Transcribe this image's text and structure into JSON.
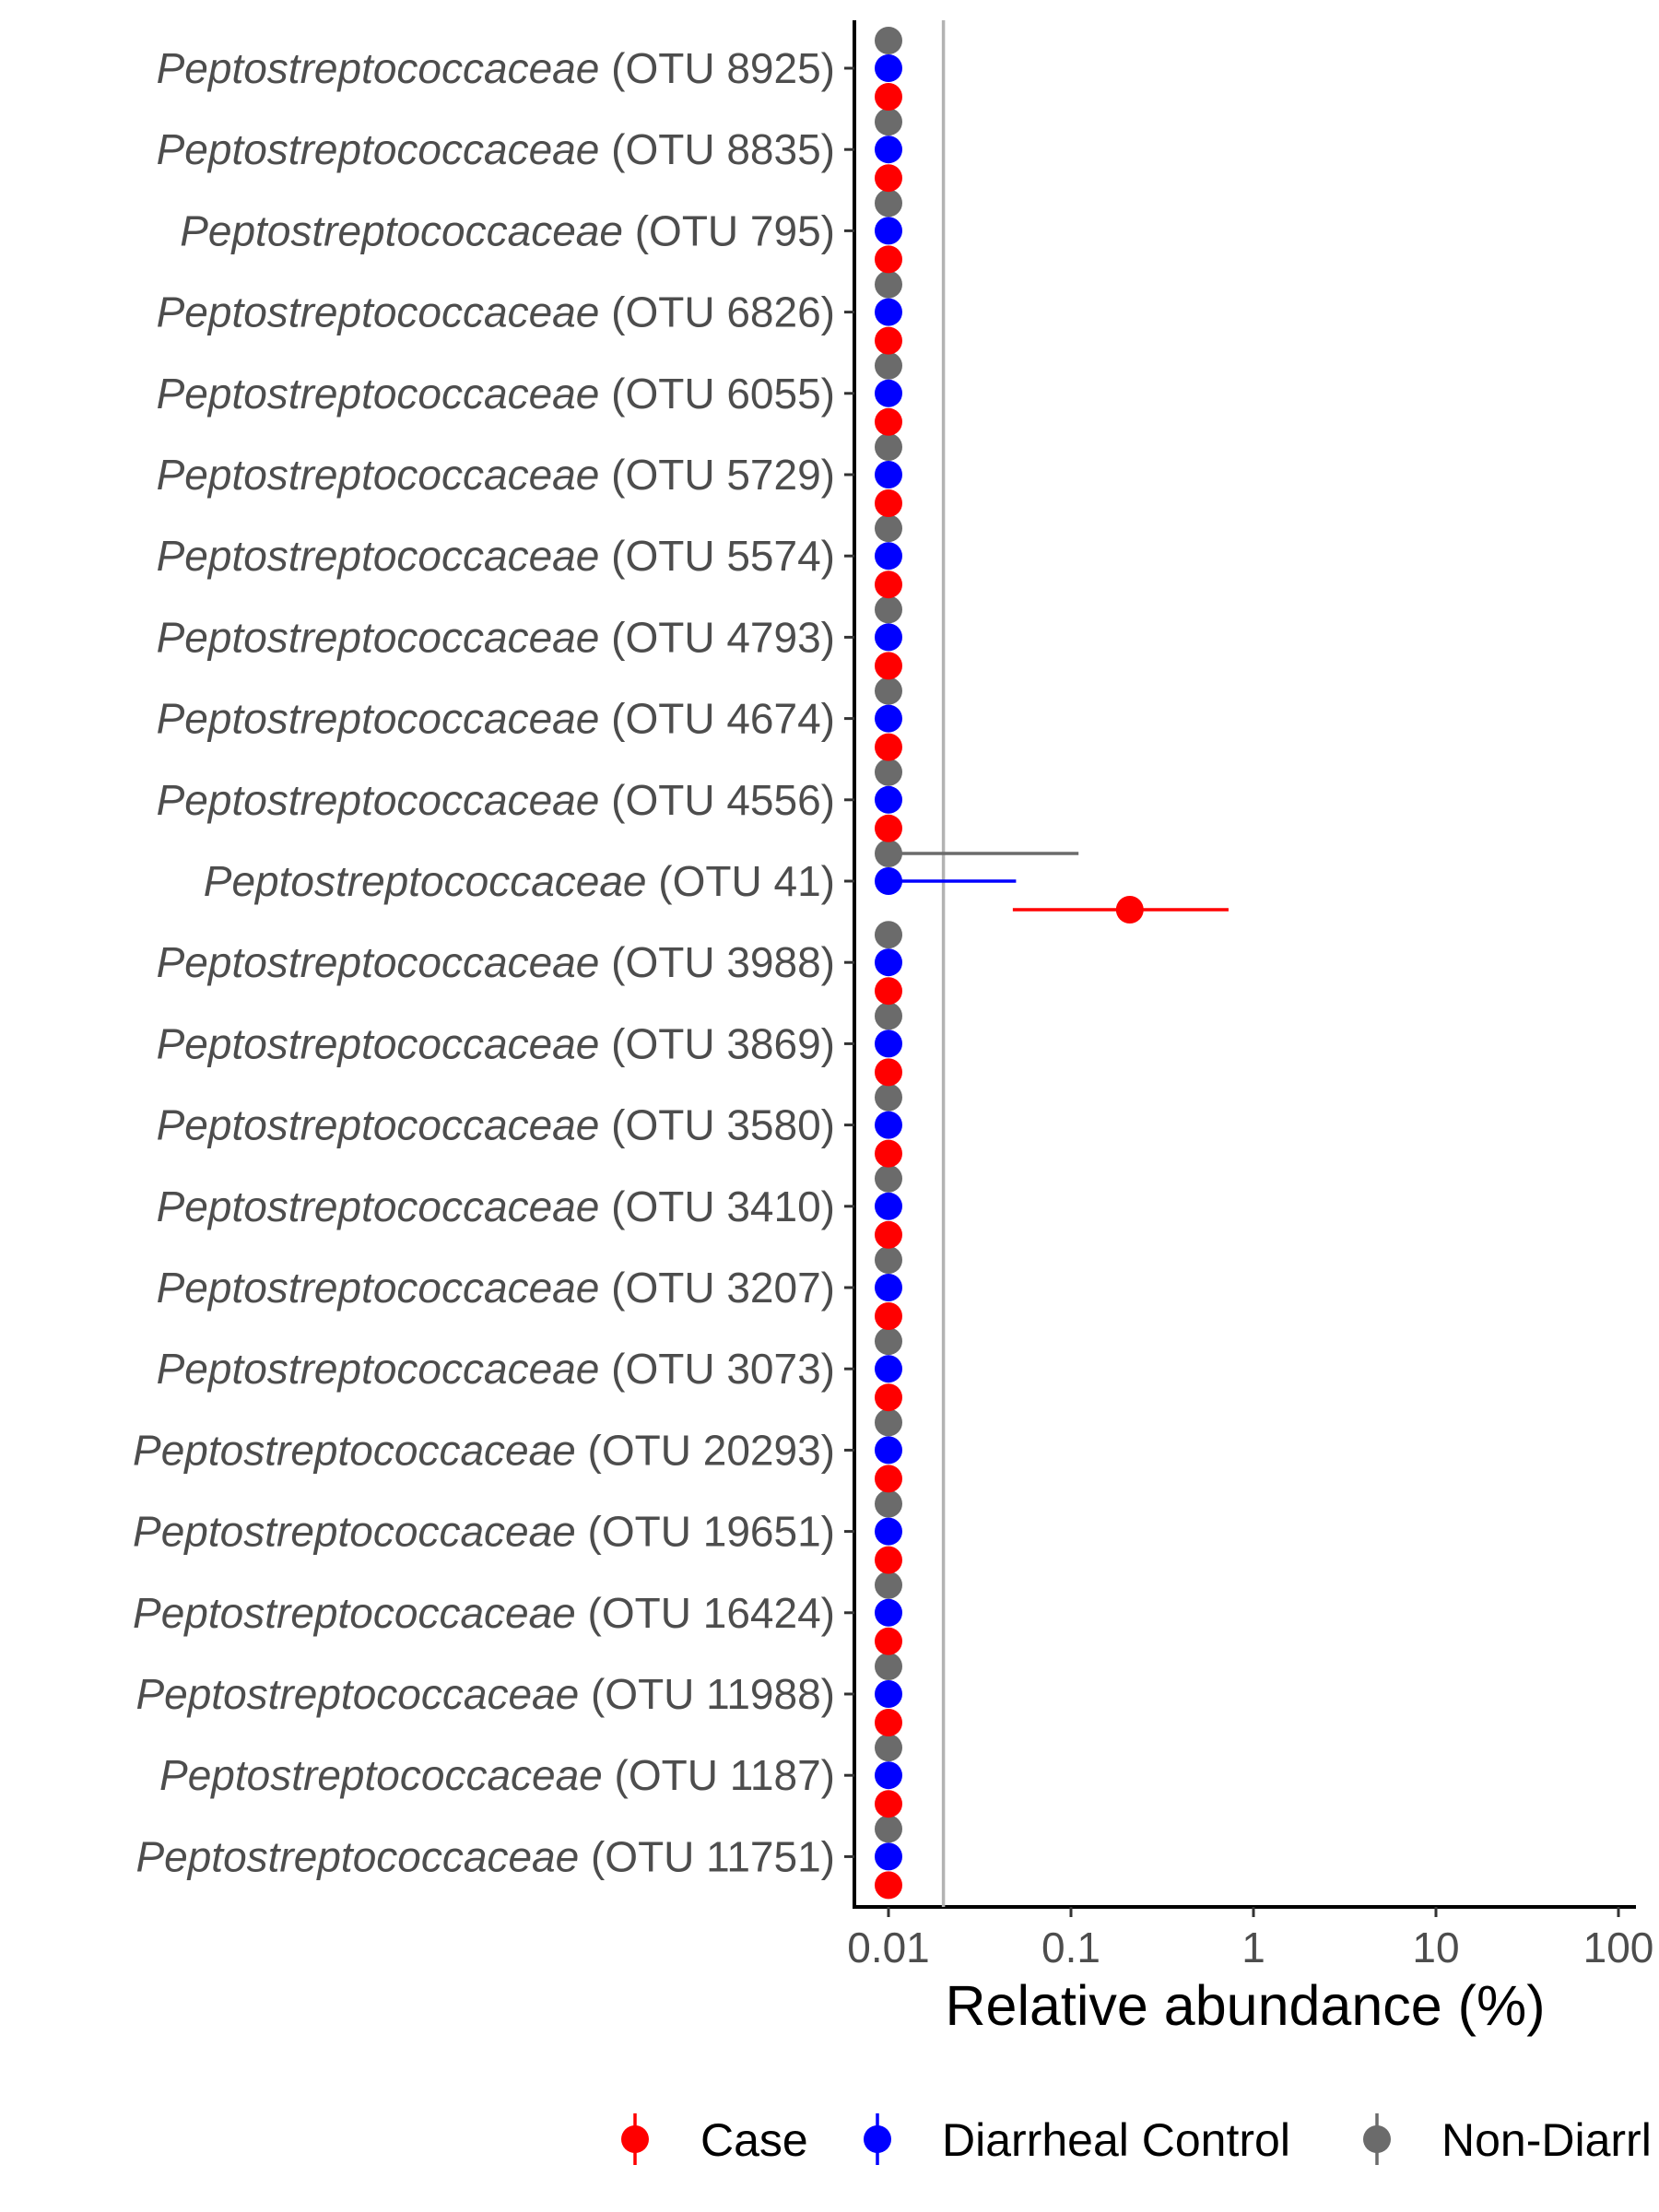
{
  "chart_data": {
    "type": "scatter",
    "subtype": "dot-and-whisker",
    "xlabel": "Relative abundance (%)",
    "x_scale": "log10",
    "xlim": [
      0.0075,
      150
    ],
    "x_ticks": [
      0.01,
      0.1,
      1,
      10,
      100
    ],
    "x_tick_labels": [
      "0.01",
      "0.1",
      "1",
      "10",
      "100"
    ],
    "reference_line_x": 0.02,
    "grid": false,
    "legend_position": "bottom",
    "categories": [
      {
        "family": "Peptostreptococcaceae",
        "otu": "(OTU 8925)"
      },
      {
        "family": "Peptostreptococcaceae",
        "otu": "(OTU 8835)"
      },
      {
        "family": "Peptostreptococcaceae",
        "otu": "(OTU 795)"
      },
      {
        "family": "Peptostreptococcaceae",
        "otu": "(OTU 6826)"
      },
      {
        "family": "Peptostreptococcaceae",
        "otu": "(OTU 6055)"
      },
      {
        "family": "Peptostreptococcaceae",
        "otu": "(OTU 5729)"
      },
      {
        "family": "Peptostreptococcaceae",
        "otu": "(OTU 5574)"
      },
      {
        "family": "Peptostreptococcaceae",
        "otu": "(OTU 4793)"
      },
      {
        "family": "Peptostreptococcaceae",
        "otu": "(OTU 4674)"
      },
      {
        "family": "Peptostreptococcaceae",
        "otu": "(OTU 4556)"
      },
      {
        "family": "Peptostreptococcaceae",
        "otu": "(OTU 41)"
      },
      {
        "family": "Peptostreptococcaceae",
        "otu": "(OTU 3988)"
      },
      {
        "family": "Peptostreptococcaceae",
        "otu": "(OTU 3869)"
      },
      {
        "family": "Peptostreptococcaceae",
        "otu": "(OTU 3580)"
      },
      {
        "family": "Peptostreptococcaceae",
        "otu": "(OTU 3410)"
      },
      {
        "family": "Peptostreptococcaceae",
        "otu": "(OTU 3207)"
      },
      {
        "family": "Peptostreptococcaceae",
        "otu": "(OTU 3073)"
      },
      {
        "family": "Peptostreptococcaceae",
        "otu": "(OTU 20293)"
      },
      {
        "family": "Peptostreptococcaceae",
        "otu": "(OTU 19651)"
      },
      {
        "family": "Peptostreptococcaceae",
        "otu": "(OTU 16424)"
      },
      {
        "family": "Peptostreptococcaceae",
        "otu": "(OTU 11988)"
      },
      {
        "family": "Peptostreptococcaceae",
        "otu": "(OTU 1187)"
      },
      {
        "family": "Peptostreptococcaceae",
        "otu": "(OTU 11751)"
      }
    ],
    "series": [
      {
        "name": "Non-Diarrheal Control",
        "color": "#6b6b6b",
        "values": [
          0.01,
          0.01,
          0.01,
          0.01,
          0.01,
          0.01,
          0.01,
          0.01,
          0.01,
          0.01,
          0.01,
          0.01,
          0.01,
          0.01,
          0.01,
          0.01,
          0.01,
          0.01,
          0.01,
          0.01,
          0.01,
          0.01,
          0.01
        ],
        "error_high": [
          null,
          null,
          null,
          null,
          null,
          null,
          null,
          null,
          null,
          null,
          0.11,
          null,
          null,
          null,
          null,
          null,
          null,
          null,
          null,
          null,
          null,
          null,
          null
        ]
      },
      {
        "name": "Diarrheal Control",
        "color": "#0000ff",
        "values": [
          0.01,
          0.01,
          0.01,
          0.01,
          0.01,
          0.01,
          0.01,
          0.01,
          0.01,
          0.01,
          0.01,
          0.01,
          0.01,
          0.01,
          0.01,
          0.01,
          0.01,
          0.01,
          0.01,
          0.01,
          0.01,
          0.01,
          0.01
        ],
        "error_high": [
          null,
          null,
          null,
          null,
          null,
          null,
          null,
          null,
          null,
          null,
          0.05,
          null,
          null,
          null,
          null,
          null,
          null,
          null,
          null,
          null,
          null,
          null,
          null
        ]
      },
      {
        "name": "Case",
        "color": "#ff0000",
        "values": [
          0.01,
          0.01,
          0.01,
          0.01,
          0.01,
          0.01,
          0.01,
          0.01,
          0.01,
          0.01,
          0.21,
          0.01,
          0.01,
          0.01,
          0.01,
          0.01,
          0.01,
          0.01,
          0.01,
          0.01,
          0.01,
          0.01,
          0.01
        ],
        "error_low": [
          null,
          null,
          null,
          null,
          null,
          null,
          null,
          null,
          null,
          null,
          0.048,
          null,
          null,
          null,
          null,
          null,
          null,
          null,
          null,
          null,
          null,
          null,
          null
        ],
        "error_high": [
          null,
          null,
          null,
          null,
          null,
          null,
          null,
          null,
          null,
          null,
          0.73,
          null,
          null,
          null,
          null,
          null,
          null,
          null,
          null,
          null,
          null,
          null,
          null
        ]
      }
    ],
    "legend": {
      "items": [
        {
          "label": "Case",
          "color": "#ff0000"
        },
        {
          "label": "Diarrheal Control",
          "color": "#0000ff"
        },
        {
          "label": "Non-Diarrl",
          "color": "#6b6b6b"
        }
      ]
    }
  }
}
